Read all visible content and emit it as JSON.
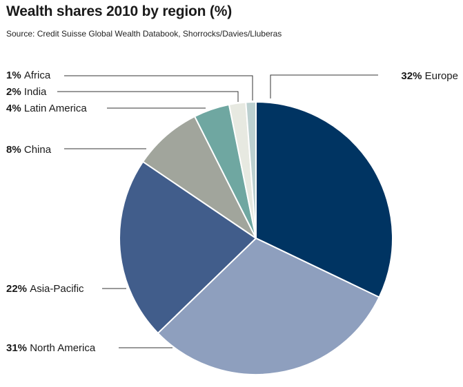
{
  "title": "Wealth shares 2010 by region (%)",
  "source": "Source: Credit Suisse Global Wealth Databook, Shorrocks/Davies/Lluberas",
  "chart_data": {
    "type": "pie",
    "title": "Wealth shares 2010 by region (%)",
    "slices": [
      {
        "label": "Europe",
        "pct_label": "32%",
        "value": 32.5,
        "color": "#003462"
      },
      {
        "label": "North America",
        "pct_label": "31%",
        "value": 31,
        "color": "#8e9fbe"
      },
      {
        "label": "Asia-Pacific",
        "pct_label": "22%",
        "value": 22,
        "color": "#415d8b"
      },
      {
        "label": "China",
        "pct_label": "8%",
        "value": 8.2,
        "color": "#a1a59c"
      },
      {
        "label": "Latin America",
        "pct_label": "4%",
        "value": 4.3,
        "color": "#6fa7a1"
      },
      {
        "label": "India",
        "pct_label": "2%",
        "value": 2,
        "color": "#e7e9e1"
      },
      {
        "label": "Africa",
        "pct_label": "1%",
        "value": 1.2,
        "color": "#bcd0d0"
      }
    ]
  }
}
